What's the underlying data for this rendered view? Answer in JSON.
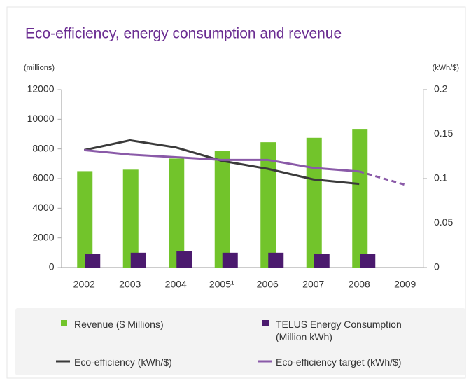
{
  "chart_data": {
    "type": "bar",
    "title": "Eco-efficiency, energy consumption and revenue",
    "y_label": "(millions)",
    "y2_label": "(kWh/$)",
    "categories": [
      "2002",
      "2003",
      "2004",
      "2005¹",
      "2006",
      "2007",
      "2008",
      "2009"
    ],
    "ylim": [
      0,
      12000
    ],
    "yticks": [
      0,
      2000,
      4000,
      6000,
      8000,
      10000,
      12000
    ],
    "y2lim": [
      0,
      0.2
    ],
    "y2ticks": [
      0,
      0.05,
      0.1,
      0.15,
      0.2
    ],
    "series": [
      {
        "name": "Revenue ($ Millions)",
        "type": "bar",
        "color": "#72c42b",
        "values": [
          6500,
          6600,
          7350,
          7850,
          8450,
          8750,
          9350,
          null
        ]
      },
      {
        "name": "TELUS Energy Consumption (Million kWh)",
        "type": "bar",
        "color": "#4b1a6e",
        "values": [
          900,
          1000,
          1100,
          1000,
          1000,
          900,
          900,
          null
        ]
      },
      {
        "name": "Eco-efficiency (kWh/$)",
        "type": "line",
        "axis": "y2",
        "color": "#3a3a3a",
        "values": [
          0.132,
          0.143,
          0.135,
          0.12,
          0.111,
          0.099,
          0.094,
          null
        ]
      },
      {
        "name": "Eco-efficiency target (kWh/$)",
        "type": "line",
        "axis": "y2",
        "color": "#8a5aa8",
        "values": [
          0.132,
          0.127,
          0.124,
          0.121,
          0.121,
          0.112,
          0.108,
          0.093
        ],
        "segment_styles": [
          "solid",
          "solid",
          "solid",
          "solid",
          "solid",
          "solid",
          "dashed"
        ]
      }
    ]
  }
}
